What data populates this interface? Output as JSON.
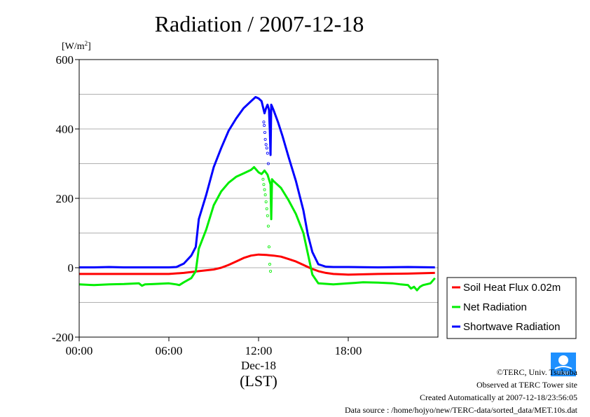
{
  "chart_data": {
    "type": "line",
    "title": "Radiation / 2007-12-18",
    "ylabel": "[W/m",
    "ylabel_sup": "2",
    "ylabel_close": "]",
    "xlabel_date": "Dec-18",
    "xlabel_unit": "(LST)",
    "ylim": [
      -200,
      600
    ],
    "xlim": [
      0,
      24
    ],
    "y_ticks": [
      -200,
      0,
      200,
      400,
      600
    ],
    "y_tick_labels": [
      "-200",
      "0",
      "200",
      "400",
      "600"
    ],
    "x_ticks": [
      0,
      6,
      12,
      18
    ],
    "x_tick_labels": [
      "00:00",
      "06:00",
      "12:00",
      "18:00"
    ],
    "grid": "horizontal",
    "legend_position": "bottom-right-outside",
    "series": [
      {
        "name": "Soil Heat Flux 0.02m",
        "color": "#ff0000",
        "x": [
          0,
          2,
          4,
          6,
          7,
          8,
          9,
          9.5,
          10,
          10.5,
          11,
          11.5,
          12,
          12.5,
          13,
          13.5,
          14,
          14.5,
          15,
          15.5,
          16,
          16.5,
          17,
          18,
          20,
          22,
          23.8
        ],
        "values": [
          -18,
          -18,
          -18,
          -18,
          -15,
          -10,
          -5,
          0,
          8,
          18,
          28,
          35,
          38,
          37,
          35,
          32,
          25,
          18,
          8,
          -2,
          -10,
          -15,
          -18,
          -20,
          -18,
          -17,
          -15
        ]
      },
      {
        "name": "Net Radiation",
        "color": "#00ee00",
        "x": [
          0,
          1,
          2,
          3,
          4,
          4.2,
          4.4,
          5,
          6,
          6.5,
          6.7,
          7,
          7.5,
          7.8,
          8,
          8.5,
          9,
          9.5,
          10,
          10.5,
          11,
          11.5,
          11.7,
          12,
          12.2,
          12.4,
          12.6,
          12.8,
          12.85,
          12.9,
          13,
          13.5,
          14,
          14.5,
          15,
          15.3,
          15.6,
          16,
          17,
          18,
          19,
          20,
          21,
          21.5,
          22,
          22.2,
          22.4,
          22.6,
          22.8,
          23,
          23.2,
          23.5,
          23.8
        ],
        "values": [
          -48,
          -50,
          -48,
          -47,
          -45,
          -52,
          -48,
          -47,
          -45,
          -48,
          -50,
          -42,
          -30,
          -10,
          55,
          110,
          180,
          220,
          245,
          262,
          272,
          282,
          290,
          275,
          270,
          280,
          268,
          240,
          140,
          255,
          250,
          230,
          195,
          155,
          100,
          40,
          -20,
          -45,
          -48,
          -45,
          -42,
          -43,
          -45,
          -48,
          -50,
          -60,
          -55,
          -65,
          -55,
          -50,
          -48,
          -45,
          -30
        ]
      },
      {
        "name": "Shortwave Radiation",
        "color": "#0000ff",
        "x": [
          0,
          1,
          2,
          3,
          4,
          5,
          6,
          6.5,
          7,
          7.5,
          7.8,
          8,
          8.5,
          9,
          9.5,
          10,
          10.5,
          11,
          11.5,
          11.8,
          12,
          12.2,
          12.4,
          12.5,
          12.6,
          12.7,
          12.75,
          12.8,
          12.85,
          12.9,
          13,
          13.3,
          13.6,
          14,
          14.5,
          15,
          15.3,
          15.6,
          16,
          16.5,
          17,
          18,
          20,
          22,
          23.8
        ],
        "values": [
          1,
          1,
          2,
          1,
          1,
          1,
          1,
          2,
          12,
          35,
          60,
          140,
          210,
          290,
          345,
          395,
          430,
          460,
          480,
          492,
          488,
          480,
          445,
          460,
          470,
          455,
          400,
          325,
          470,
          465,
          455,
          420,
          380,
          320,
          250,
          165,
          95,
          45,
          10,
          3,
          2,
          2,
          1,
          2,
          1
        ]
      }
    ],
    "scatter_points": [
      {
        "color": "#0000ff",
        "x": [
          12.35,
          12.38,
          12.42,
          12.45,
          12.5,
          12.55,
          12.6,
          12.65
        ],
        "values": [
          420,
          410,
          390,
          370,
          355,
          345,
          330,
          300
        ]
      },
      {
        "color": "#00ee00",
        "x": [
          12.3,
          12.35,
          12.4,
          12.45,
          12.5,
          12.55,
          12.6,
          12.65,
          12.7,
          12.75,
          12.8
        ],
        "values": [
          255,
          240,
          225,
          210,
          190,
          170,
          150,
          120,
          60,
          10,
          -10
        ]
      }
    ]
  },
  "footer": {
    "credit": "©TERC, Univ. Tsukuba",
    "site": "Observed at TERC Tower site",
    "created": "Created Automatically at 2007-12-18/23:56:05",
    "source": "Data source : /home/hojyo/new/TERC-data/sorted_data/MET.10s.dat",
    "logo_text": "TERC"
  }
}
